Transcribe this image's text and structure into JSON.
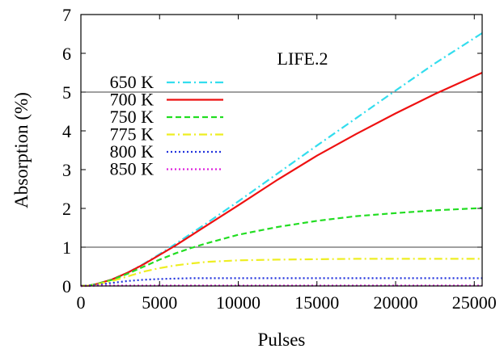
{
  "chart_data": {
    "type": "line",
    "title": "",
    "annotation": "LIFE.2",
    "xlabel": "Pulses",
    "ylabel": "Absorption (%)",
    "xlim": [
      0,
      25500
    ],
    "ylim": [
      0,
      7
    ],
    "x_ticks": [
      0,
      5000,
      10000,
      15000,
      20000,
      25000
    ],
    "x_tick_labels": [
      "0",
      "5000",
      "10000",
      "15000",
      "20000",
      "25000"
    ],
    "y_ticks": [
      0,
      1,
      2,
      3,
      4,
      5,
      6,
      7
    ],
    "y_tick_labels": [
      "0",
      "1",
      "2",
      "3",
      "4",
      "5",
      "6",
      "7"
    ],
    "reference_lines_y": [
      1,
      5
    ],
    "grid": false,
    "legend_position": "top-left",
    "series": [
      {
        "name": "650 K",
        "color": "#33ddee",
        "dash": "dash-dot",
        "x": [
          0,
          500,
          1000,
          2000,
          3000,
          4000,
          5000,
          6000,
          7000,
          8000,
          10000,
          12500,
          15000,
          17500,
          20000,
          22500,
          25500
        ],
        "y": [
          0,
          0.01,
          0.05,
          0.17,
          0.35,
          0.57,
          0.82,
          1.08,
          1.35,
          1.62,
          2.18,
          2.9,
          3.62,
          4.33,
          5.04,
          5.74,
          6.52
        ]
      },
      {
        "name": "700 K",
        "color": "#ee1111",
        "dash": "solid",
        "x": [
          0,
          500,
          1000,
          2000,
          3000,
          4000,
          5000,
          6000,
          7000,
          8000,
          10000,
          12500,
          15000,
          17500,
          20000,
          22500,
          25500
        ],
        "y": [
          0,
          0.01,
          0.05,
          0.17,
          0.35,
          0.56,
          0.8,
          1.04,
          1.3,
          1.56,
          2.08,
          2.74,
          3.36,
          3.92,
          4.45,
          4.95,
          5.5
        ]
      },
      {
        "name": "750 K",
        "color": "#22dd22",
        "dash": "dashed",
        "x": [
          0,
          500,
          1000,
          2000,
          3000,
          4000,
          5000,
          6000,
          7000,
          8000,
          10000,
          12500,
          15000,
          17500,
          20000,
          22500,
          25500
        ],
        "y": [
          0,
          0.01,
          0.05,
          0.16,
          0.32,
          0.5,
          0.68,
          0.84,
          0.98,
          1.1,
          1.32,
          1.52,
          1.68,
          1.8,
          1.88,
          1.95,
          2.01
        ]
      },
      {
        "name": "775 K",
        "color": "#eeee22",
        "dash": "dash-dot",
        "x": [
          0,
          500,
          1000,
          2000,
          3000,
          4000,
          5000,
          6000,
          7000,
          8000,
          10000,
          12500,
          15000,
          17500,
          20000,
          22500,
          25500
        ],
        "y": [
          0,
          0.01,
          0.04,
          0.13,
          0.25,
          0.37,
          0.46,
          0.53,
          0.58,
          0.62,
          0.66,
          0.68,
          0.69,
          0.7,
          0.7,
          0.7,
          0.7
        ]
      },
      {
        "name": "800 K",
        "color": "#2233dd",
        "dash": "dotted",
        "x": [
          0,
          500,
          1000,
          2000,
          3000,
          4000,
          5000,
          6000,
          7000,
          8000,
          10000,
          12500,
          15000,
          17500,
          20000,
          22500,
          25500
        ],
        "y": [
          0,
          0.01,
          0.03,
          0.08,
          0.13,
          0.16,
          0.18,
          0.19,
          0.2,
          0.2,
          0.2,
          0.2,
          0.2,
          0.2,
          0.2,
          0.2,
          0.2
        ]
      },
      {
        "name": "850 K",
        "color": "#dd22dd",
        "dash": "dotted",
        "x": [
          0,
          500,
          1000,
          2000,
          3000,
          5000,
          10000,
          15000,
          20000,
          25500
        ],
        "y": [
          0,
          0.0,
          0.01,
          0.01,
          0.01,
          0.01,
          0.01,
          0.01,
          0.01,
          0.01
        ]
      }
    ]
  }
}
